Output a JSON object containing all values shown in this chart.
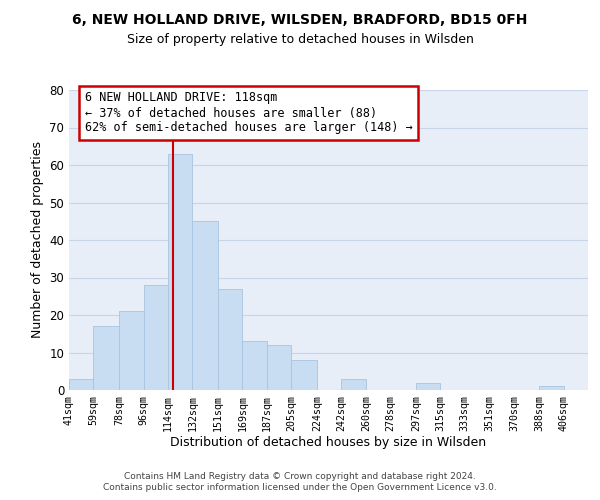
{
  "title": "6, NEW HOLLAND DRIVE, WILSDEN, BRADFORD, BD15 0FH",
  "subtitle": "Size of property relative to detached houses in Wilsden",
  "xlabel": "Distribution of detached houses by size in Wilsden",
  "ylabel": "Number of detached properties",
  "bar_left_edges": [
    41,
    59,
    78,
    96,
    114,
    132,
    151,
    169,
    187,
    205,
    224,
    242,
    260,
    278,
    297,
    315,
    333,
    351,
    370,
    388
  ],
  "bar_heights": [
    3,
    17,
    21,
    28,
    63,
    45,
    27,
    13,
    12,
    8,
    0,
    3,
    0,
    0,
    2,
    0,
    0,
    0,
    0,
    1
  ],
  "bar_widths": [
    18,
    19,
    18,
    18,
    18,
    19,
    18,
    18,
    18,
    19,
    18,
    18,
    18,
    19,
    18,
    18,
    18,
    19,
    18,
    18
  ],
  "tick_labels": [
    "41sqm",
    "59sqm",
    "78sqm",
    "96sqm",
    "114sqm",
    "132sqm",
    "151sqm",
    "169sqm",
    "187sqm",
    "205sqm",
    "224sqm",
    "242sqm",
    "260sqm",
    "278sqm",
    "297sqm",
    "315sqm",
    "333sqm",
    "351sqm",
    "370sqm",
    "388sqm",
    "406sqm"
  ],
  "tick_positions": [
    41,
    59,
    78,
    96,
    114,
    132,
    151,
    169,
    187,
    205,
    224,
    242,
    260,
    278,
    297,
    315,
    333,
    351,
    370,
    388,
    406
  ],
  "bar_color": "#c9ddf2",
  "bar_edge_color": "#a8c4e0",
  "vline_x": 118,
  "vline_color": "#cc0000",
  "ylim": [
    0,
    80
  ],
  "yticks": [
    0,
    10,
    20,
    30,
    40,
    50,
    60,
    70,
    80
  ],
  "annotation_title": "6 NEW HOLLAND DRIVE: 118sqm",
  "annotation_line1": "← 37% of detached houses are smaller (88)",
  "annotation_line2": "62% of semi-detached houses are larger (148) →",
  "footer_line1": "Contains HM Land Registry data © Crown copyright and database right 2024.",
  "footer_line2": "Contains public sector information licensed under the Open Government Licence v3.0.",
  "background_color": "#ffffff",
  "ax_background_color": "#e8eef8",
  "grid_color": "#c8d4e8"
}
